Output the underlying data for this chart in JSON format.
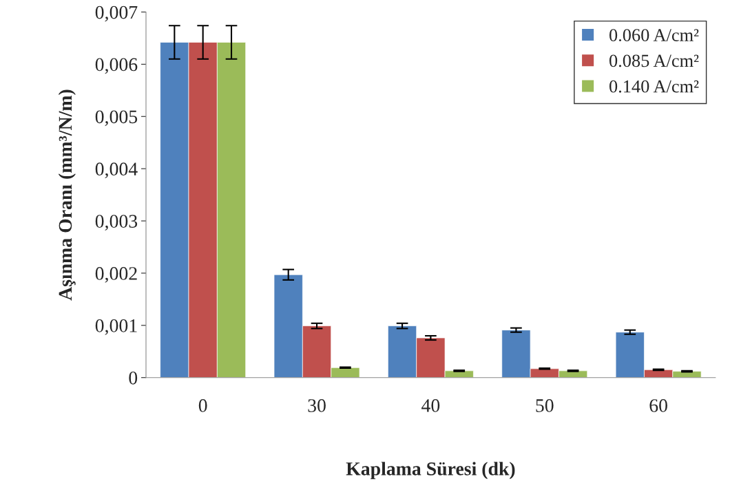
{
  "chart_data": {
    "type": "bar",
    "xlabel": "Kaplama Süresi (dk)",
    "ylabel": "Aşınma Oranı (mm³/N/m)",
    "categories": [
      "0",
      "30",
      "40",
      "50",
      "60"
    ],
    "series": [
      {
        "name": "0.060 A/cm²",
        "color": "#4f81bd",
        "values": [
          0.00642,
          0.00197,
          0.00099,
          0.00091,
          0.00087
        ],
        "errors": [
          0.00032,
          0.0001,
          5e-05,
          4e-05,
          4e-05
        ]
      },
      {
        "name": "0.085 A/cm²",
        "color": "#c0504d",
        "values": [
          0.00642,
          0.00099,
          0.00076,
          0.00017,
          0.00015
        ],
        "errors": [
          0.00032,
          5e-05,
          4e-05,
          1e-05,
          1e-05
        ]
      },
      {
        "name": "0.140 A/cm²",
        "color": "#9bbb59",
        "values": [
          0.00642,
          0.00019,
          0.00013,
          0.00013,
          0.00012
        ],
        "errors": [
          0.00032,
          1e-05,
          1e-05,
          1e-05,
          1e-05
        ]
      }
    ],
    "ylim": [
      0,
      0.007
    ],
    "yticks": [
      {
        "value": 0,
        "label": "0"
      },
      {
        "value": 0.001,
        "label": "0,001"
      },
      {
        "value": 0.002,
        "label": "0,002"
      },
      {
        "value": 0.003,
        "label": "0,003"
      },
      {
        "value": 0.004,
        "label": "0,004"
      },
      {
        "value": 0.005,
        "label": "0,005"
      },
      {
        "value": 0.006,
        "label": "0,006"
      },
      {
        "value": 0.007,
        "label": "0,007"
      }
    ],
    "grid": false,
    "legend": "top right"
  }
}
